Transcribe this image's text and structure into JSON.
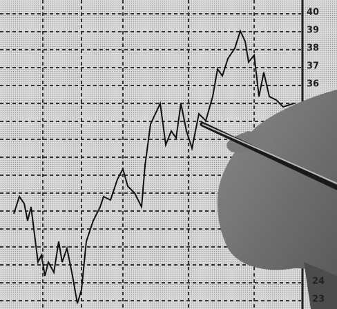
{
  "axis_labels_top": [
    "40",
    "39",
    "38",
    "37",
    "36"
  ],
  "axis_labels_bottom": [
    "24",
    "23"
  ]
}
